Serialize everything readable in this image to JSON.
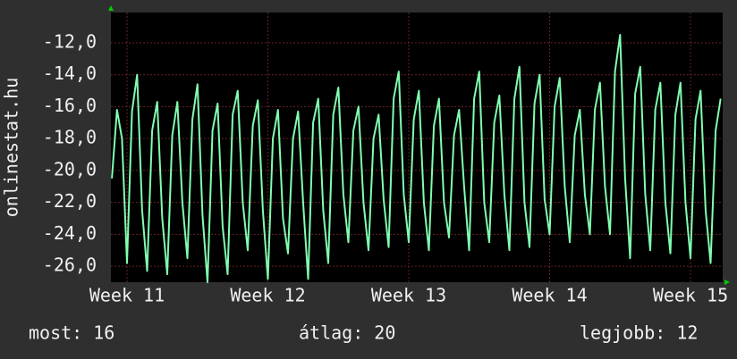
{
  "chart_data": {
    "type": "line",
    "y_label": "onlinestat.hu",
    "xlim": [
      -0.8,
      29.6
    ],
    "ylim": [
      -27,
      -10.1
    ],
    "xticks": [
      {
        "value": 0,
        "label": "Week 11"
      },
      {
        "value": 7,
        "label": "Week 12"
      },
      {
        "value": 14,
        "label": "Week 13"
      },
      {
        "value": 21,
        "label": "Week 14"
      },
      {
        "value": 28,
        "label": "Week 15"
      }
    ],
    "yticks": [
      {
        "value": -26,
        "label": "-26,0"
      },
      {
        "value": -24,
        "label": "-24,0"
      },
      {
        "value": -22,
        "label": "-22,0"
      },
      {
        "value": -20,
        "label": "-20,0"
      },
      {
        "value": -18,
        "label": "-18,0"
      },
      {
        "value": -16,
        "label": "-16,0"
      },
      {
        "value": -14,
        "label": "-14,0"
      },
      {
        "value": -12,
        "label": "-12,0"
      }
    ],
    "grid": true,
    "x": [
      -0.75,
      -0.5,
      -0.25,
      0,
      0.25,
      0.5,
      0.75,
      1,
      1.25,
      1.5,
      1.75,
      2,
      2.25,
      2.5,
      2.75,
      3,
      3.25,
      3.5,
      3.75,
      4,
      4.25,
      4.5,
      4.75,
      5,
      5.25,
      5.5,
      5.75,
      6,
      6.25,
      6.5,
      6.75,
      7,
      7.25,
      7.5,
      7.75,
      8,
      8.25,
      8.5,
      8.75,
      9,
      9.25,
      9.5,
      9.75,
      10,
      10.25,
      10.5,
      10.75,
      11,
      11.25,
      11.5,
      11.75,
      12,
      12.25,
      12.5,
      12.75,
      13,
      13.25,
      13.5,
      13.75,
      14,
      14.25,
      14.5,
      14.75,
      15,
      15.25,
      15.5,
      15.75,
      16,
      16.25,
      16.5,
      16.75,
      17,
      17.25,
      17.5,
      17.75,
      18,
      18.25,
      18.5,
      18.75,
      19,
      19.25,
      19.5,
      19.75,
      20,
      20.25,
      20.5,
      20.75,
      21,
      21.25,
      21.5,
      21.75,
      22,
      22.25,
      22.5,
      22.75,
      23,
      23.25,
      23.5,
      23.75,
      24,
      24.25,
      24.5,
      24.75,
      25,
      25.25,
      25.5,
      25.75,
      26,
      26.25,
      26.5,
      26.75,
      27,
      27.25,
      27.5,
      27.75,
      28,
      28.25,
      28.5,
      28.75,
      29,
      29.25,
      29.5
    ],
    "series": [
      {
        "name": "onlinestat.hu",
        "color": "#80ffb0",
        "values": [
          -20.5,
          -16.2,
          -18.0,
          -25.8,
          -16.3,
          -14.0,
          -22.5,
          -26.3,
          -17.5,
          -15.7,
          -23.0,
          -26.5,
          -17.8,
          -15.7,
          -22.0,
          -25.5,
          -16.8,
          -14.6,
          -22.8,
          -27.0,
          -17.5,
          -15.8,
          -23.5,
          -26.5,
          -16.5,
          -15.0,
          -22.0,
          -25.0,
          -17.2,
          -15.6,
          -22.5,
          -26.8,
          -18.0,
          -16.2,
          -23.0,
          -25.2,
          -18.0,
          -16.3,
          -22.0,
          -26.8,
          -17.0,
          -15.5,
          -22.5,
          -25.8,
          -16.5,
          -14.8,
          -21.5,
          -24.5,
          -17.5,
          -16.0,
          -22.0,
          -25.0,
          -18.0,
          -16.5,
          -21.8,
          -24.8,
          -15.5,
          -13.8,
          -21.5,
          -24.5,
          -16.8,
          -15.0,
          -22.0,
          -25.0,
          -17.2,
          -15.5,
          -22.0,
          -24.2,
          -17.8,
          -16.2,
          -21.0,
          -25.0,
          -15.5,
          -13.8,
          -22.0,
          -24.5,
          -17.0,
          -15.3,
          -21.5,
          -25.0,
          -15.5,
          -13.5,
          -22.0,
          -24.8,
          -15.8,
          -14.0,
          -21.8,
          -24.0,
          -16.0,
          -14.2,
          -21.0,
          -24.5,
          -17.8,
          -16.2,
          -21.5,
          -24.0,
          -16.2,
          -14.5,
          -21.0,
          -24.0,
          -13.8,
          -11.5,
          -20.5,
          -25.5,
          -15.2,
          -13.5,
          -21.5,
          -25.0,
          -16.2,
          -14.5,
          -22.0,
          -25.2,
          -16.5,
          -14.5,
          -22.0,
          -25.5,
          -16.8,
          -15.0,
          -22.5,
          -25.8,
          -17.5,
          -15.5
        ]
      }
    ]
  },
  "footer": {
    "current": "most: 16",
    "average": "átlag: 20",
    "best": "legjobb: 12"
  }
}
